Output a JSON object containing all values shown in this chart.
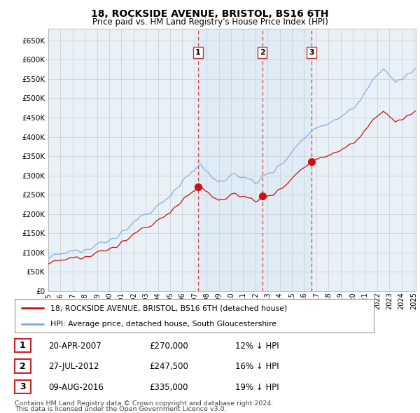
{
  "title": "18, ROCKSIDE AVENUE, BRISTOL, BS16 6TH",
  "subtitle": "Price paid vs. HM Land Registry's House Price Index (HPI)",
  "legend_line1": "18, ROCKSIDE AVENUE, BRISTOL, BS16 6TH (detached house)",
  "legend_line2": "HPI: Average price, detached house, South Gloucestershire",
  "footer1": "Contains HM Land Registry data © Crown copyright and database right 2024.",
  "footer2": "This data is licensed under the Open Government Licence v3.0.",
  "transactions": [
    {
      "num": 1,
      "date": "20-APR-2007",
      "price": "£270,000",
      "note": "12% ↓ HPI"
    },
    {
      "num": 2,
      "date": "27-JUL-2012",
      "price": "£247,500",
      "note": "16% ↓ HPI"
    },
    {
      "num": 3,
      "date": "09-AUG-2016",
      "price": "£335,000",
      "note": "19% ↓ HPI"
    }
  ],
  "vline_years": [
    2007.3,
    2012.57,
    2016.61
  ],
  "sale_prices": [
    270000,
    247500,
    335000
  ],
  "sale_years": [
    2007.3,
    2012.57,
    2016.61
  ],
  "ylim": [
    0,
    680000
  ],
  "yticks": [
    0,
    50000,
    100000,
    150000,
    200000,
    250000,
    300000,
    350000,
    400000,
    450000,
    500000,
    550000,
    600000,
    650000
  ],
  "ytick_labels": [
    "£0",
    "£50K",
    "£100K",
    "£150K",
    "£200K",
    "£250K",
    "£300K",
    "£350K",
    "£400K",
    "£450K",
    "£500K",
    "£550K",
    "£600K",
    "£650K"
  ],
  "hpi_color": "#7aaadd",
  "sale_color": "#cc1111",
  "vline_color": "#dd4444",
  "dot_color": "#cc1111",
  "grid_color": "#cccccc",
  "chart_bg": "#e8f0f8",
  "bg_color": "#ffffff",
  "title_color": "#000000",
  "shade_color": "#ddeeff"
}
